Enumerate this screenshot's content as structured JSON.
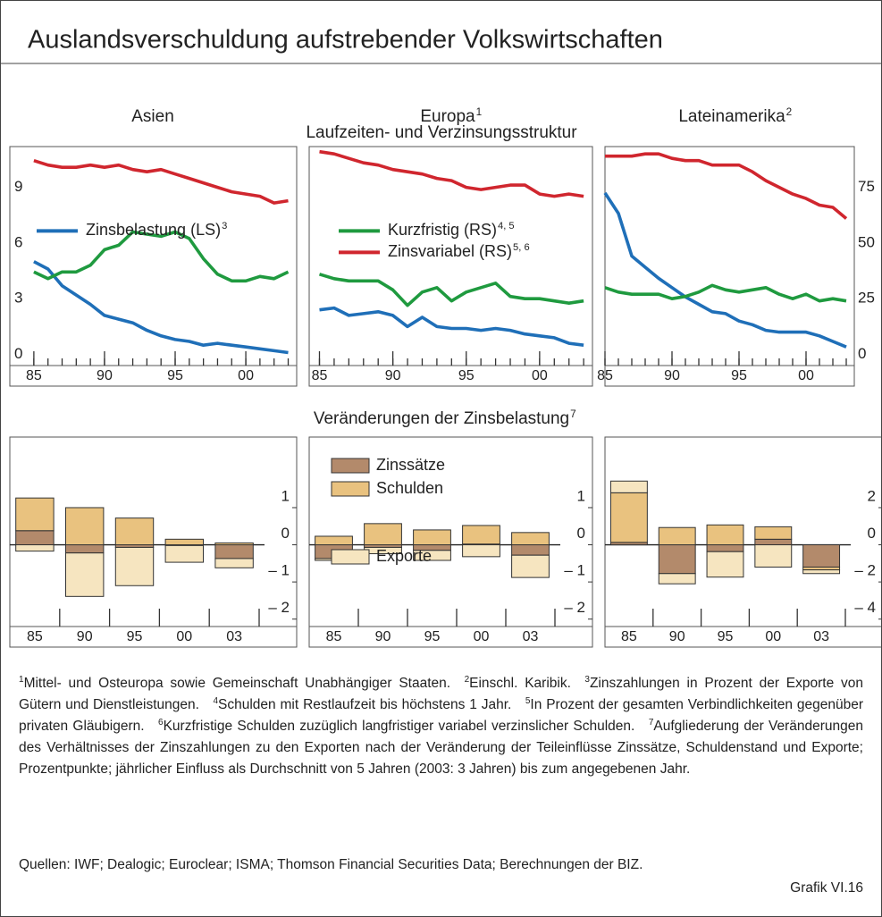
{
  "title": "Auslandsverschuldung aufstrebender Volkswirtschaften",
  "column_headers": [
    {
      "text": "Asien"
    },
    {
      "text": "Europa",
      "note": "1"
    },
    {
      "text": "Lateinamerika",
      "note": "2"
    }
  ],
  "section_titles": [
    {
      "text": "Laufzeiten- und Verzinsungsstruktur"
    },
    {
      "text": "Veränderungen der Zinsbelastung",
      "note": "7"
    }
  ],
  "chart_data": [
    {
      "type": "line",
      "x": [
        1985,
        1986,
        1987,
        1988,
        1989,
        1990,
        1991,
        1992,
        1993,
        1994,
        1995,
        1996,
        1997,
        1998,
        1999,
        2000,
        2001,
        2002,
        2003
      ],
      "xlim": [
        1983.3,
        2003.6
      ],
      "xticks": [
        {
          "value": 1985,
          "label": "85"
        },
        {
          "value": 1990,
          "label": "90"
        },
        {
          "value": 1995,
          "label": "95"
        },
        {
          "value": 2000,
          "label": "00"
        }
      ],
      "ylim": [
        -0.6,
        11.2
      ],
      "yticks": [
        0,
        3,
        6,
        9
      ],
      "y2lim": [
        -5,
        93.3
      ],
      "legend": "center left",
      "series": [
        {
          "name": "Zinsbelastung (LS)",
          "note": "3",
          "color": "#1f6fb8",
          "values": [
            5.0,
            4.6,
            3.7,
            3.2,
            2.7,
            2.1,
            1.9,
            1.7,
            1.3,
            1.0,
            0.8,
            0.7,
            0.5,
            0.6,
            0.5,
            0.4,
            0.3,
            0.2,
            0.1
          ]
        },
        {
          "color": "#1f9a3f",
          "axis": "y2",
          "values": [
            37,
            34,
            37,
            37,
            40,
            47,
            49,
            55,
            54,
            53,
            55,
            52,
            43,
            36,
            33,
            33,
            35,
            34,
            37
          ]
        },
        {
          "color": "#d0262e",
          "axis": "y2",
          "values": [
            87,
            85,
            84,
            84,
            85,
            84,
            85,
            83,
            82,
            83,
            81,
            79,
            77,
            75,
            73,
            72,
            71,
            68,
            69
          ]
        }
      ]
    },
    {
      "type": "line",
      "x": [
        1985,
        1986,
        1987,
        1988,
        1989,
        1990,
        1991,
        1992,
        1993,
        1994,
        1995,
        1996,
        1997,
        1998,
        1999,
        2000,
        2001,
        2002,
        2003
      ],
      "xlim": [
        1984.3,
        2003.6
      ],
      "xticks": [
        {
          "value": 1985,
          "label": "85"
        },
        {
          "value": 1990,
          "label": "90"
        },
        {
          "value": 1995,
          "label": "95"
        },
        {
          "value": 2000,
          "label": "00"
        }
      ],
      "ylim": [
        -0.6,
        11.2
      ],
      "y2lim": [
        -5,
        93.3
      ],
      "legend": "upper center",
      "series": [
        {
          "color": "#1f6fb8",
          "values": [
            2.4,
            2.5,
            2.1,
            2.2,
            2.3,
            2.1,
            1.5,
            2.0,
            1.5,
            1.4,
            1.4,
            1.3,
            1.4,
            1.3,
            1.1,
            1.0,
            0.9,
            0.6,
            0.5
          ]
        },
        {
          "name": "Kurzfristig (RS)",
          "note": "4, 5",
          "color": "#1f9a3f",
          "axis": "y2",
          "values": [
            36,
            34,
            33,
            33,
            33,
            29,
            22,
            28,
            30,
            24,
            28,
            30,
            32,
            26,
            25,
            25,
            24,
            23,
            24
          ]
        },
        {
          "name": "Zinsvariabel (RS)",
          "note": "5, 6",
          "color": "#d0262e",
          "axis": "y2",
          "values": [
            91,
            90,
            88,
            86,
            85,
            83,
            82,
            81,
            79,
            78,
            75,
            74,
            75,
            76,
            76,
            72,
            71,
            72,
            71
          ]
        }
      ]
    },
    {
      "type": "line",
      "x": [
        1985,
        1986,
        1987,
        1988,
        1989,
        1990,
        1991,
        1992,
        1993,
        1994,
        1995,
        1996,
        1997,
        1998,
        1999,
        2000,
        2001,
        2002,
        2003
      ],
      "xlim": [
        1985,
        2003.6
      ],
      "xticks": [
        {
          "value": 1985,
          "label": "85"
        },
        {
          "value": 1990,
          "label": "90"
        },
        {
          "value": 1995,
          "label": "95"
        },
        {
          "value": 2000,
          "label": "00"
        }
      ],
      "ylim": [
        -0.6,
        11.2
      ],
      "y2lim": [
        -5,
        93.3
      ],
      "y2ticks": [
        0,
        25,
        50,
        75
      ],
      "series": [
        {
          "color": "#1f6fb8",
          "values": [
            8.7,
            7.6,
            5.3,
            4.7,
            4.1,
            3.6,
            3.1,
            2.7,
            2.3,
            2.2,
            1.8,
            1.6,
            1.3,
            1.2,
            1.2,
            1.2,
            1.0,
            0.7,
            0.4
          ]
        },
        {
          "color": "#1f9a3f",
          "axis": "y2",
          "values": [
            30,
            28,
            27,
            27,
            27,
            25,
            26,
            28,
            31,
            29,
            28,
            29,
            30,
            27,
            25,
            27,
            24,
            25,
            24
          ]
        },
        {
          "color": "#d0262e",
          "axis": "y2",
          "values": [
            89,
            89,
            89,
            90,
            90,
            88,
            87,
            87,
            85,
            85,
            85,
            82,
            78,
            75,
            72,
            70,
            67,
            66,
            61
          ]
        }
      ]
    },
    {
      "type": "bar",
      "stacked": true,
      "categories": [
        "85",
        "90",
        "95",
        "00",
        "03"
      ],
      "ylim": [
        -2.2,
        2.9
      ],
      "yticks": [
        1,
        0,
        {
          "value": -1,
          "label": "– 1"
        },
        {
          "value": -2,
          "label": "– 2"
        }
      ],
      "series": [
        {
          "color": "#b38a6b",
          "values": [
            0.38,
            -0.22,
            -0.07,
            -0.02,
            -0.37
          ]
        },
        {
          "color": "#e9c27f",
          "values": [
            0.88,
            1.0,
            0.72,
            0.15,
            0.05
          ]
        },
        {
          "color": "#f6e5c0",
          "values": [
            -0.17,
            -1.17,
            -1.03,
            -0.45,
            -0.25
          ]
        }
      ]
    },
    {
      "type": "bar",
      "stacked": true,
      "categories": [
        "85",
        "90",
        "95",
        "00",
        "03"
      ],
      "ylim": [
        -2.2,
        2.9
      ],
      "legend": "upper left",
      "yticks": [
        1,
        0,
        {
          "value": -1,
          "label": "– 1"
        },
        {
          "value": -2,
          "label": "– 2"
        }
      ],
      "series": [
        {
          "name": "Zinssätze",
          "color": "#b38a6b",
          "values": [
            -0.37,
            -0.07,
            -0.15,
            0.02,
            -0.28
          ]
        },
        {
          "name": "Schulden",
          "color": "#e9c27f",
          "values": [
            0.23,
            0.57,
            0.4,
            0.5,
            0.33
          ]
        },
        {
          "name": "Exporte",
          "color": "#f6e5c0",
          "values": [
            -0.05,
            -0.17,
            -0.27,
            -0.32,
            -0.6
          ]
        }
      ]
    },
    {
      "type": "bar",
      "stacked": true,
      "categories": [
        "85",
        "90",
        "95",
        "00",
        "03"
      ],
      "ylim": [
        -4.4,
        5.8
      ],
      "yticks": [
        2,
        0,
        {
          "value": -2,
          "label": "– 2"
        },
        {
          "value": -4,
          "label": "– 4"
        }
      ],
      "series": [
        {
          "color": "#b38a6b",
          "values": [
            0.13,
            -1.55,
            -0.37,
            0.3,
            -1.2
          ]
        },
        {
          "color": "#e9c27f",
          "values": [
            2.67,
            0.93,
            1.07,
            0.67,
            -0.15
          ]
        },
        {
          "color": "#f6e5c0",
          "values": [
            0.63,
            -0.55,
            -1.37,
            -1.2,
            -0.2
          ]
        }
      ]
    }
  ],
  "footnotes": [
    {
      "num": "1",
      "text": "Mittel- und Osteuropa sowie Gemeinschaft Unabhängiger Staaten."
    },
    {
      "num": "2",
      "text": "Einschl. Karibik."
    },
    {
      "num": "3",
      "text": "Zinszahlungen in Prozent der Exporte von Gütern und Dienstleistungen."
    },
    {
      "num": "4",
      "text": "Schulden mit Restlaufzeit bis höchstens 1 Jahr."
    },
    {
      "num": "5",
      "text": "In Prozent der gesamten Verbindlichkeiten gegenüber privaten Gläubigern."
    },
    {
      "num": "6",
      "text": "Kurzfristige Schulden zuzüglich langfristiger variabel verzinslicher Schulden."
    },
    {
      "num": "7",
      "text": "Aufgliederung der Veränderungen des Verhältnisses der Zinszahlungen zu den Exporten nach der Veränderung der Teileinflüsse Zinssätze, Schuldenstand und Exporte; Prozentpunkte; jährlicher Einfluss als Durchschnitt von 5 Jahren (2003: 3 Jahren) bis zum angegebenen Jahr."
    }
  ],
  "source": "Quellen: IWF; Dealogic; Euroclear; ISMA; Thomson Financial Securities Data; Berechnungen der BIZ.",
  "figure_id": "Grafik VI.16"
}
